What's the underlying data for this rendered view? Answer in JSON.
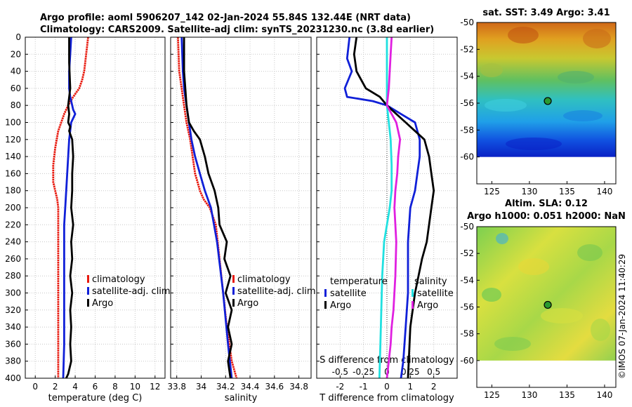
{
  "title": {
    "line1": "Argo profile: aoml 5906207_142 02-Jan-2024 55.84S 132.44E (NRT data)",
    "line2": "Climatology: CARS2009. Satellite-adj clim: synTS_20231230.nc (3.8d earlier)"
  },
  "colors": {
    "climatology": "#e8190e",
    "satellite": "#1020d8",
    "argo": "#000000",
    "sal_diff": "#e020e0",
    "temp_diff": "#20e0e0"
  },
  "copyright": "©IMOS 07-Jan-2024 11:40:29",
  "chart_data": [
    {
      "type": "line",
      "name": "temperature-profile",
      "xlabel": "temperature (deg C)",
      "xlim": [
        -1,
        13
      ],
      "ylim": [
        0,
        400
      ],
      "xticks": [
        "0",
        "2",
        "4",
        "6",
        "8",
        "10",
        "12"
      ],
      "yticks": [
        "0",
        "20",
        "40",
        "60",
        "80",
        "100",
        "120",
        "140",
        "160",
        "180",
        "200",
        "220",
        "240",
        "260",
        "280",
        "300",
        "320",
        "340",
        "360",
        "380",
        "400"
      ],
      "legend": [
        "climatology",
        "satellite-adj. clim",
        "Argo"
      ],
      "series": [
        {
          "name": "climatology",
          "color": "#e8190e",
          "x": [
            5.3,
            5.1,
            4.9,
            4.7,
            4.4,
            3.8,
            3.3,
            2.9,
            2.6,
            2.3,
            2.0,
            1.8,
            1.8,
            2.0,
            2.2,
            2.3,
            2.3,
            2.3,
            2.3,
            2.3
          ],
          "y": [
            0,
            20,
            40,
            50,
            60,
            70,
            80,
            90,
            100,
            110,
            130,
            150,
            170,
            180,
            190,
            200,
            220,
            260,
            340,
            400
          ]
        },
        {
          "name": "satellite-adj. clim",
          "color": "#1020d8",
          "x": [
            3.6,
            3.5,
            3.4,
            3.4,
            3.5,
            3.7,
            3.8,
            4.0,
            3.6,
            3.4,
            3.3,
            3.2,
            3.1,
            3.0,
            2.9,
            2.9,
            2.9,
            2.9,
            2.9,
            2.8
          ],
          "y": [
            0,
            20,
            40,
            60,
            70,
            80,
            85,
            90,
            100,
            120,
            140,
            160,
            180,
            200,
            220,
            240,
            280,
            320,
            360,
            400
          ]
        },
        {
          "name": "Argo",
          "color": "#000000",
          "x": [
            3.4,
            3.4,
            3.5,
            3.3,
            3.4,
            3.3,
            3.5,
            3.4,
            3.7,
            3.8,
            3.7,
            3.7,
            3.6,
            3.8,
            3.6,
            3.7,
            3.5,
            3.7,
            3.5,
            3.6,
            3.5,
            3.6,
            3.3,
            3.1
          ],
          "y": [
            0,
            30,
            60,
            80,
            90,
            100,
            105,
            110,
            120,
            140,
            160,
            180,
            200,
            220,
            240,
            260,
            280,
            300,
            320,
            340,
            360,
            380,
            395,
            400
          ]
        }
      ]
    },
    {
      "type": "line",
      "name": "salinity-profile",
      "xlabel": "salinity",
      "xlim": [
        33.75,
        34.9
      ],
      "ylim": [
        0,
        400
      ],
      "xticks": [
        "33.8",
        "34",
        "34.2",
        "34.4",
        "34.6",
        "34.8"
      ],
      "legend": [
        "climatology",
        "satellite-adj. clim",
        "Argo"
      ],
      "series": [
        {
          "name": "climatology",
          "color": "#e8190e",
          "x": [
            33.81,
            33.82,
            33.84,
            33.86,
            33.88,
            33.91,
            33.93,
            33.95,
            33.97,
            33.99,
            34.02,
            34.07,
            34.12,
            34.15,
            34.18,
            34.21,
            34.25,
            34.29
          ],
          "y": [
            0,
            40,
            60,
            80,
            100,
            120,
            140,
            160,
            170,
            180,
            190,
            200,
            220,
            260,
            300,
            340,
            380,
            400
          ]
        },
        {
          "name": "satellite-adj. clim",
          "color": "#1020d8",
          "x": [
            33.84,
            33.85,
            33.86,
            33.88,
            33.9,
            33.92,
            33.95,
            33.99,
            34.03,
            34.08,
            34.13,
            34.18,
            34.22,
            34.25
          ],
          "y": [
            0,
            40,
            60,
            80,
            100,
            120,
            140,
            160,
            180,
            200,
            240,
            300,
            360,
            400
          ]
        },
        {
          "name": "Argo",
          "color": "#000000",
          "x": [
            33.86,
            33.86,
            33.87,
            33.88,
            33.9,
            33.94,
            33.99,
            34.03,
            34.06,
            34.11,
            34.14,
            34.15,
            34.21,
            34.19,
            34.24,
            34.2,
            34.25,
            34.22,
            34.25,
            34.22,
            34.24
          ],
          "y": [
            0,
            40,
            60,
            80,
            100,
            110,
            120,
            140,
            160,
            180,
            200,
            220,
            240,
            260,
            280,
            300,
            320,
            340,
            360,
            380,
            400
          ]
        }
      ]
    },
    {
      "type": "line",
      "name": "difference-profile",
      "xlabel": "T difference from climatology",
      "top_axis_label": "S difference from climatology",
      "xlim": [
        -3,
        3
      ],
      "ylim": [
        0,
        400
      ],
      "xticks": [
        "-2",
        "-1",
        "0",
        "1",
        "2"
      ],
      "top_ticks": [
        "-0.5",
        "-0.25",
        "0",
        "0.25",
        "0.5"
      ],
      "legend_temperature": {
        "title": "temperature",
        "items": [
          "satellite",
          "Argo"
        ]
      },
      "legend_salinity": {
        "title": "salinity",
        "items": [
          "satellite",
          "Argo"
        ]
      },
      "series": [
        {
          "name": "temperature satellite",
          "color": "#1020d8",
          "x": [
            -1.6,
            -1.7,
            -1.5,
            -1.8,
            -1.7,
            -0.6,
            0.0,
            0.6,
            1.2,
            1.4,
            1.4,
            1.3,
            1.2,
            1.0,
            0.9,
            0.9,
            0.8,
            0.7,
            0.6
          ],
          "y": [
            0,
            25,
            40,
            60,
            70,
            75,
            80,
            90,
            100,
            120,
            140,
            160,
            180,
            200,
            240,
            300,
            340,
            380,
            400
          ]
        },
        {
          "name": "temperature Argo",
          "color": "#000000",
          "x": [
            -1.3,
            -1.4,
            -1.3,
            -0.9,
            -0.3,
            0.0,
            0.4,
            0.8,
            1.2,
            1.6,
            1.8,
            1.9,
            2.0,
            1.9,
            1.8,
            1.7,
            1.5,
            1.2,
            1.0,
            0.9
          ],
          "y": [
            0,
            20,
            40,
            60,
            70,
            80,
            90,
            100,
            110,
            120,
            140,
            160,
            180,
            200,
            220,
            240,
            260,
            300,
            340,
            400
          ]
        },
        {
          "name": "salinity satellite",
          "color": "#20e0e0",
          "x": [
            0.0,
            0.0,
            0.02,
            0.04,
            0.05,
            0.05,
            0.03,
            0.0,
            -0.03,
            -0.05,
            -0.06,
            -0.07,
            -0.08
          ],
          "y": [
            0,
            80,
            100,
            120,
            150,
            180,
            200,
            220,
            240,
            280,
            320,
            360,
            400
          ]
        },
        {
          "name": "salinity Argo",
          "color": "#e020e0",
          "x": [
            0.05,
            0.04,
            0.03,
            0.02,
            0.0,
            0.1,
            0.14,
            0.12,
            0.11,
            0.09,
            0.08,
            0.1,
            0.09,
            0.07,
            0.05,
            0.04,
            0.0
          ],
          "y": [
            0,
            20,
            40,
            60,
            80,
            100,
            120,
            140,
            160,
            180,
            200,
            240,
            280,
            320,
            340,
            360,
            400
          ]
        }
      ]
    },
    {
      "type": "heatmap",
      "name": "sst-map",
      "title": "sat. SST: 3.49 Argo: 3.41",
      "xticks": [
        "125",
        "130",
        "135",
        "140"
      ],
      "yticks": [
        "-50",
        "-52",
        "-54",
        "-56",
        "-58",
        "-60"
      ],
      "xlim": [
        123,
        141.5
      ],
      "ylim": [
        -62,
        -50
      ],
      "data_lat_range": [
        -60,
        -50
      ],
      "marker": {
        "lon": 132.44,
        "lat": -55.84
      }
    },
    {
      "type": "heatmap",
      "name": "sla-map",
      "title_line1": "Altim. SLA: 0.12",
      "title_line2": "Argo h1000: 0.051 h2000: NaN",
      "xticks": [
        "125",
        "130",
        "135",
        "140"
      ],
      "yticks": [
        "-50",
        "-52",
        "-54",
        "-56",
        "-58",
        "-60"
      ],
      "xlim": [
        123,
        141.5
      ],
      "ylim": [
        -62,
        -50
      ],
      "data_lat_range": [
        -60,
        -50
      ],
      "marker": {
        "lon": 132.44,
        "lat": -55.84
      }
    }
  ]
}
